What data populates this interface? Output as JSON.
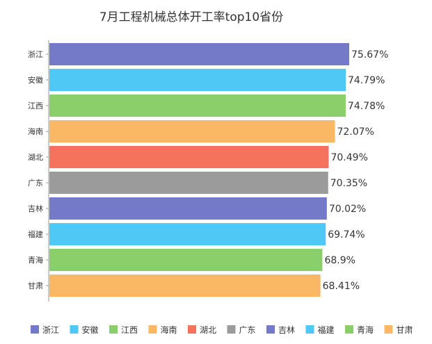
{
  "chart_data": {
    "type": "bar",
    "orientation": "horizontal",
    "title": "7月工程机械总体开工率top10省份",
    "categories": [
      "浙江",
      "安徽",
      "江西",
      "海南",
      "湖北",
      "广东",
      "吉林",
      "福建",
      "青海",
      "甘肃"
    ],
    "values": [
      75.67,
      74.79,
      74.78,
      72.07,
      70.49,
      70.35,
      70.02,
      69.74,
      68.9,
      68.41
    ],
    "value_labels": [
      "75.67%",
      "74.79%",
      "74.78%",
      "72.07%",
      "70.49%",
      "70.35%",
      "70.02%",
      "69.74%",
      "68.9%",
      "68.41%"
    ],
    "colors": [
      "#7479c8",
      "#4fc8f5",
      "#8bcf6a",
      "#fbb864",
      "#f5735c",
      "#9b9b9b",
      "#7479c8",
      "#4fc8f5",
      "#8bcf6a",
      "#fbb864"
    ],
    "xlim": [
      0,
      80
    ],
    "grid": false,
    "legend_position": "bottom",
    "legend": [
      "浙江",
      "安徽",
      "江西",
      "海南",
      "湖北",
      "广东",
      "吉林",
      "福建",
      "青海",
      "甘肃"
    ]
  }
}
